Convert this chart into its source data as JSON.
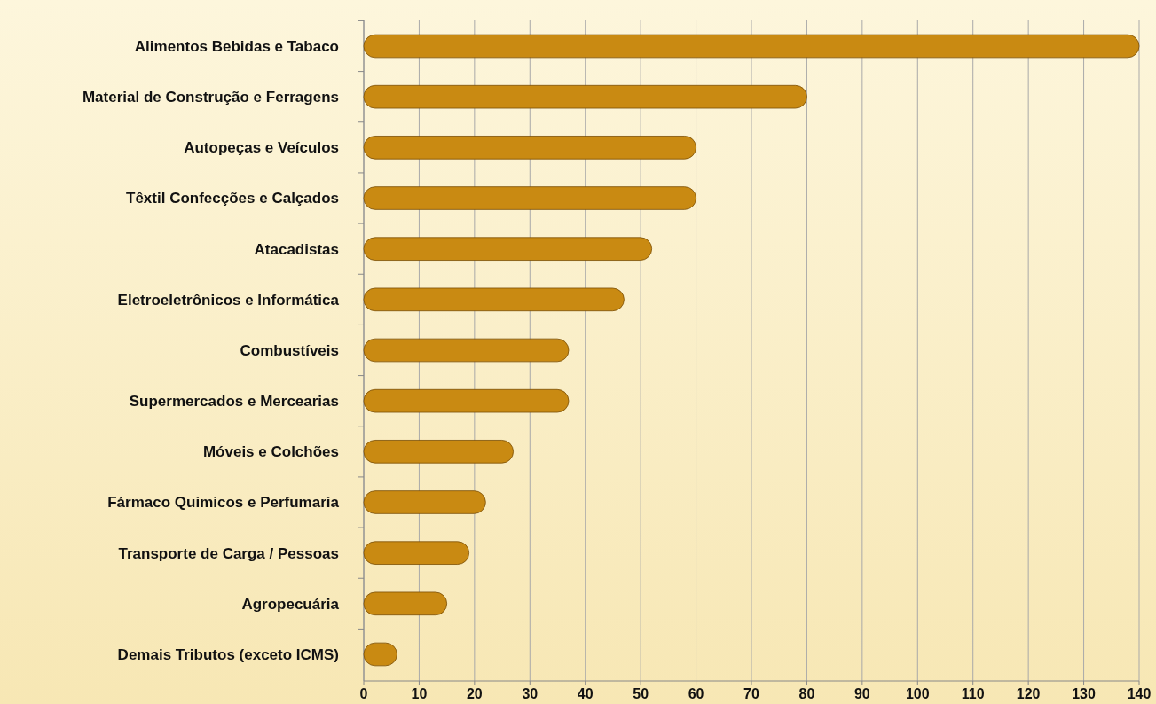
{
  "chart_data": {
    "type": "bar",
    "orientation": "horizontal",
    "categories": [
      "Alimentos Bebidas e Tabaco",
      "Material de Construção e Ferragens",
      "Autopeças e Veículos",
      "Têxtil Confecções e Calçados",
      "Atacadistas",
      "Eletroeletrônicos e Informática",
      "Combustíveis",
      "Supermercados e Mercearias",
      "Móveis e Colchões",
      "Fármaco Quimicos e Perfumaria",
      "Transporte de Carga / Pessoas",
      "Agropecuária",
      "Demais Tributos (exceto ICMS)"
    ],
    "values": [
      140,
      80,
      60,
      60,
      52,
      47,
      37,
      37,
      27,
      22,
      19,
      15,
      6
    ],
    "color": "#c98a12",
    "xlim": [
      0,
      140
    ],
    "xticks": [
      0,
      10,
      20,
      30,
      40,
      50,
      60,
      70,
      80,
      90,
      100,
      110,
      120,
      130,
      140
    ],
    "grid": "x"
  }
}
